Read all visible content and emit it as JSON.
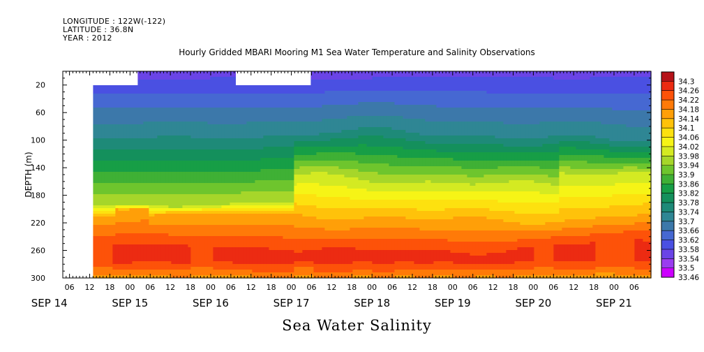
{
  "header": {
    "longitude": "LONGITUDE : 122W(-122)",
    "latitude": "LATITUDE : 36.8N",
    "year": "YEAR : 2012"
  },
  "chart_data": {
    "type": "heatmap",
    "title": "Hourly Gridded MBARI Mooring M1 Sea Water Temperature and Salinity Observations",
    "caption": "Sea Water Salinity",
    "ylabel": "DEPTH (m)",
    "y_reversed": true,
    "ylim": [
      0,
      300
    ],
    "y_ticks": [
      20,
      60,
      100,
      140,
      180,
      220,
      260,
      300
    ],
    "xlim": [
      "2012-09-14T04:00",
      "2012-09-21T11:00"
    ],
    "x_hour_ticks": [
      "06",
      "12",
      "18",
      "00",
      "06",
      "12",
      "18",
      "00",
      "06",
      "12",
      "18",
      "00",
      "06",
      "12",
      "18",
      "00",
      "06",
      "12",
      "18",
      "00",
      "06",
      "12",
      "18",
      "00",
      "06",
      "12",
      "18",
      "00",
      "06"
    ],
    "x_day_labels": [
      {
        "label": "SEP 14",
        "date": "2012-09-14"
      },
      {
        "label": "SEP 15",
        "date": "2012-09-15"
      },
      {
        "label": "SEP 16",
        "date": "2012-09-16"
      },
      {
        "label": "SEP 17",
        "date": "2012-09-17"
      },
      {
        "label": "SEP 18",
        "date": "2012-09-18"
      },
      {
        "label": "SEP 19",
        "date": "2012-09-19"
      },
      {
        "label": "SEP 20",
        "date": "2012-09-20"
      },
      {
        "label": "SEP 21",
        "date": "2012-09-21"
      }
    ],
    "data_start": "2012-09-14T13:00",
    "surface_gaps": [
      {
        "start": "2012-09-14T13:00",
        "end": "2012-09-15T02:00",
        "depth_top": 20
      },
      {
        "start": "2012-09-16T07:00",
        "end": "2012-09-17T06:00",
        "depth_top": 20
      }
    ],
    "colorbar": {
      "levels": [
        33.46,
        33.5,
        33.54,
        33.58,
        33.62,
        33.66,
        33.7,
        33.74,
        33.78,
        33.82,
        33.86,
        33.9,
        33.94,
        33.98,
        34.02,
        34.06,
        34.1,
        34.14,
        34.18,
        34.22,
        34.26,
        34.3
      ],
      "colors": [
        "#cc00ff",
        "#9a3cf0",
        "#6a44e6",
        "#4a50e2",
        "#4668d2",
        "#3c78aa",
        "#2f8694",
        "#1e8a78",
        "#14905c",
        "#179e46",
        "#3fb035",
        "#6ec52d",
        "#a6d62a",
        "#d4ea22",
        "#f6f416",
        "#fde10f",
        "#ffc20a",
        "#ff9f08",
        "#ff7a08",
        "#fd5209",
        "#ec2b12",
        "#b51319"
      ]
    },
    "approximate_isolines": [
      {
        "salinity": 33.58,
        "mean_depth": 10
      },
      {
        "salinity": 33.74,
        "mean_depth": 95
      },
      {
        "salinity": 33.98,
        "mean_depth": 160
      },
      {
        "salinity": 34.14,
        "mean_depth": 210
      },
      {
        "salinity": 34.26,
        "mean_depth": 255
      }
    ]
  }
}
